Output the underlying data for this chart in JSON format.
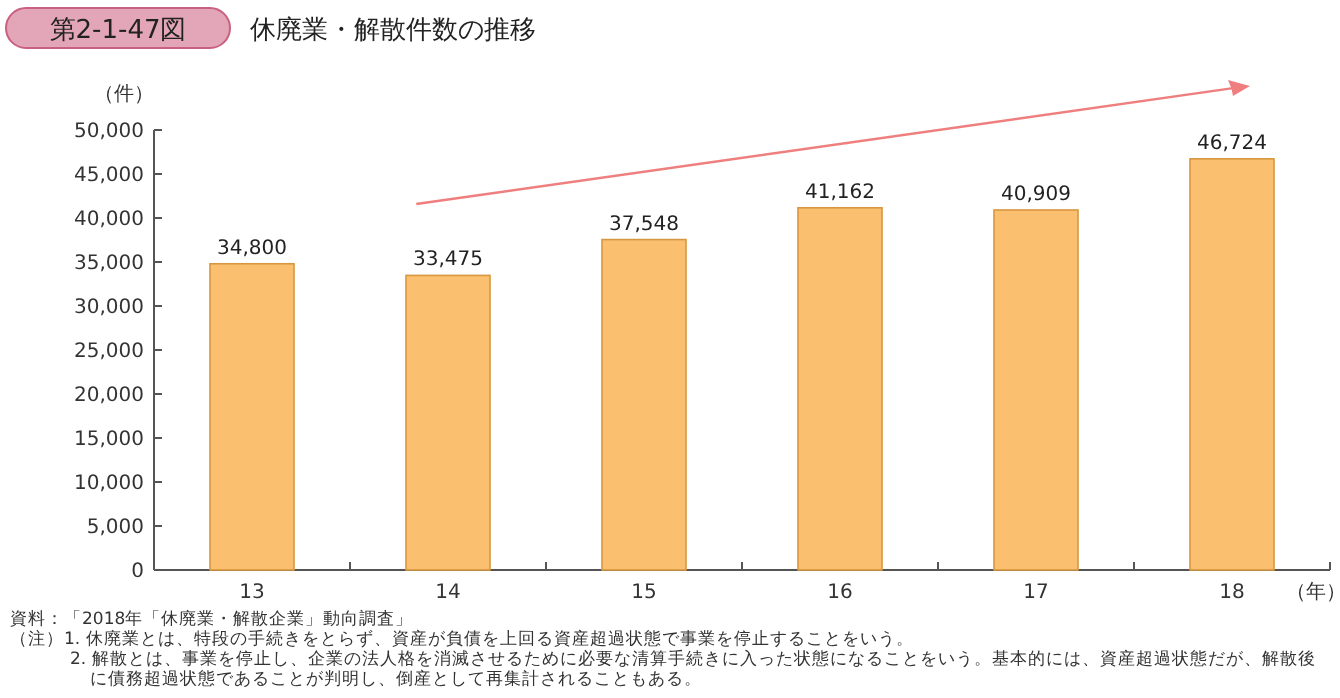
{
  "chart_data": {
    "type": "bar",
    "title": "第2-1-47図",
    "subtitle": "休廃業・解散件数の推移",
    "ylabel": "（件）",
    "xlabel": "（年）",
    "categories": [
      "13",
      "14",
      "15",
      "16",
      "17",
      "18"
    ],
    "values": [
      34800,
      33475,
      37548,
      41162,
      40909,
      46724
    ],
    "value_labels": [
      "34,800",
      "33,475",
      "37,548",
      "41,162",
      "40,909",
      "46,724"
    ],
    "color": "#fbc06f",
    "ylim": [
      0,
      50000
    ],
    "yticks": [
      0,
      {
        "value": 5000,
        "label": "5,000"
      },
      {
        "value": 10000,
        "label": "10,000"
      },
      {
        "value": 15000,
        "label": "15,000"
      },
      {
        "value": 20000,
        "label": "20,000"
      },
      {
        "value": 25000,
        "label": "25,000"
      },
      {
        "value": 30000,
        "label": "30,000"
      },
      {
        "value": 35000,
        "label": "35,000"
      },
      {
        "value": 40000,
        "label": "40,000"
      },
      {
        "value": 45000,
        "label": "45,000"
      },
      {
        "value": 50000,
        "label": "50,000"
      }
    ],
    "grid": false,
    "annotations": [
      "資料：「2018年「休廃業・解散企業」動向調査」",
      "（注）1. 休廃業とは、特段の手続きをとらず、資産が負債を上回る資産超過状態で事業を停止することをいう。",
      "2. 解散とは、事業を停止し、企業の法人格を消滅させるために必要な清算手続きに入った状態になることをいう。基本的には、資産超過状態だが、解散後に債務超過状態であることが判明し、倒産として再集計されることもある。"
    ]
  }
}
